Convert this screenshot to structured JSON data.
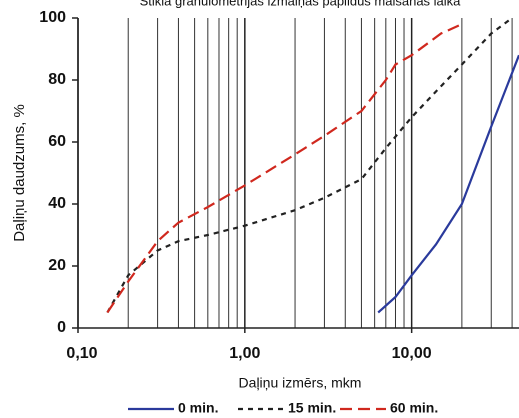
{
  "chart_data": {
    "type": "line",
    "title": "Stikla granulometrijas izmaiņas papildus malšanas laikā",
    "x_label": "Daļiņu izmērs, mkm",
    "y_label": "Daļiņu daudzums, %",
    "log_x": true,
    "xlim": [
      0.1,
      44
    ],
    "ylim": [
      0,
      100
    ],
    "xticks": [
      {
        "value": 0.1,
        "label": "0,10"
      },
      {
        "value": 1,
        "label": "1,00"
      },
      {
        "value": 10,
        "label": "10,00"
      }
    ],
    "xminor": [
      0.2,
      0.3,
      0.4,
      0.5,
      0.6,
      0.7,
      0.8,
      0.9,
      2,
      3,
      4,
      5,
      6,
      7,
      8,
      9,
      20,
      30,
      40
    ],
    "yticks": [
      0,
      20,
      40,
      60,
      80,
      100
    ],
    "grid": true,
    "legend": "bottom",
    "series": [
      {
        "name": "0 min.",
        "color": "#2a3a9c",
        "dash": "solid",
        "x": [
          6.3,
          8,
          10,
          14,
          20,
          30,
          44
        ],
        "values": [
          5,
          10,
          17,
          27,
          40,
          65,
          88
        ]
      },
      {
        "name": "15 min.",
        "color": "#222222",
        "dash": "dotted",
        "x": [
          0.15,
          0.2,
          0.3,
          0.4,
          0.6,
          1,
          2,
          3,
          5,
          7,
          10,
          15,
          20,
          30,
          40
        ],
        "values": [
          5,
          17,
          25,
          28,
          30,
          33,
          38,
          42,
          48,
          58,
          68,
          78,
          85,
          95,
          100
        ]
      },
      {
        "name": "60 min.",
        "color": "#d0281e",
        "dash": "dashed",
        "x": [
          0.15,
          0.2,
          0.3,
          0.4,
          0.6,
          1,
          2,
          3,
          5,
          7,
          8,
          10,
          15,
          20
        ],
        "values": [
          5,
          15,
          28,
          34,
          39,
          46,
          56,
          62,
          70,
          80,
          85,
          88,
          95,
          98
        ]
      }
    ]
  }
}
